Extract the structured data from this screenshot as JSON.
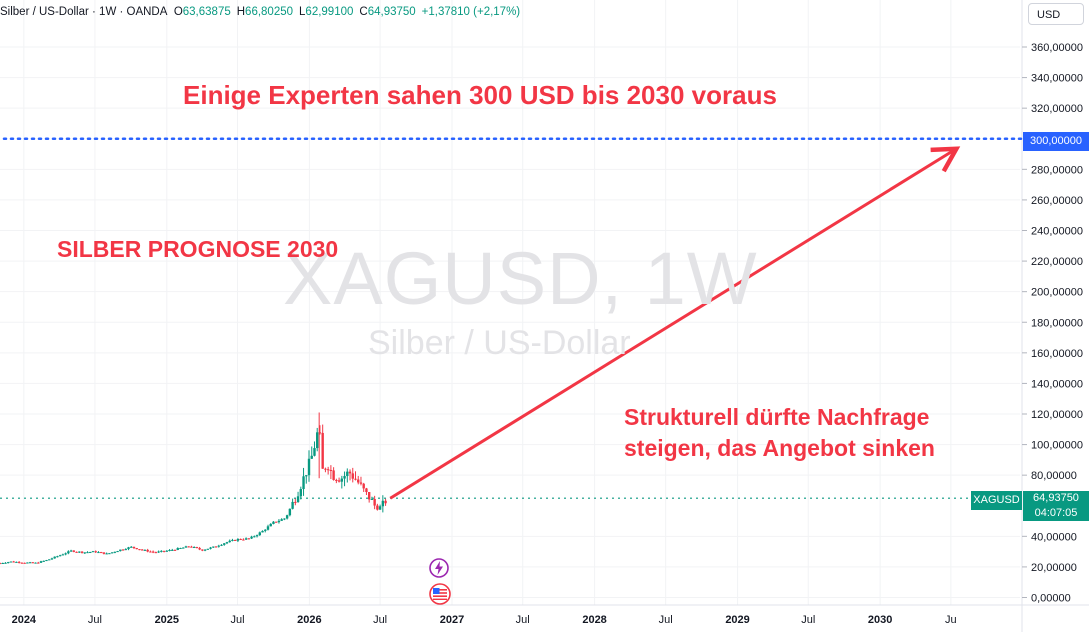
{
  "header": {
    "symbol": "Silber / US-Dollar · 1W · OANDA",
    "open_label": "O",
    "open": "63,63875",
    "high_label": "H",
    "high": "66,80250",
    "low_label": "L",
    "low": "62,99100",
    "close_label": "C",
    "close": "64,93750",
    "change": "+1,37810 (+2,17%)"
  },
  "currency": "USD",
  "watermark": {
    "ticker": "XAGUSD, 1W",
    "name": "Silber / US-Dollar"
  },
  "annotations": {
    "experts": "Einige Experten sahen 300 USD bis 2030 voraus",
    "title": "SILBER PROGNOSE 2030",
    "structural_1": "Strukturell dürfte Nachfrage",
    "structural_2": "steigen, das Angebot sinken"
  },
  "badges": {
    "target_price": "300,00000",
    "symbol": "XAGUSD",
    "last_price": "64,93750",
    "countdown": "04:07:05"
  },
  "colors": {
    "up": "#089981",
    "down": "#f23645",
    "arrow": "#f23645",
    "target_line": "#2962ff",
    "axis_text": "#131722"
  },
  "icons": [
    "flash-event-icon",
    "us-flag-event-icon"
  ],
  "chart_data": {
    "type": "candlestick",
    "y_ticks": [
      "0,00000",
      "20,00000",
      "40,00000",
      "80,00000",
      "100,00000",
      "120,00000",
      "140,00000",
      "160,00000",
      "180,00000",
      "200,00000",
      "220,00000",
      "240,00000",
      "260,00000",
      "280,00000",
      "320,00000",
      "340,00000",
      "360,00000"
    ],
    "y_range": [
      0,
      365
    ],
    "x_ticks": [
      "2024",
      "Jul",
      "2025",
      "Jul",
      "2026",
      "Jul",
      "2027",
      "Jul",
      "2028",
      "Jul",
      "2029",
      "Jul",
      "2030",
      "Ju"
    ],
    "x_range": [
      "2023-11-01",
      "2030-12-25"
    ],
    "series_points": [
      [
        "2023-11-01",
        22.5
      ],
      [
        "2023-12-01",
        23.5
      ],
      [
        "2024-01-01",
        22.8
      ],
      [
        "2024-02-01",
        22.6
      ],
      [
        "2024-03-01",
        24.5
      ],
      [
        "2024-04-01",
        27.5
      ],
      [
        "2024-05-01",
        30.5
      ],
      [
        "2024-06-01",
        29.5
      ],
      [
        "2024-07-01",
        30.0
      ],
      [
        "2024-08-01",
        28.5
      ],
      [
        "2024-09-01",
        31.0
      ],
      [
        "2024-10-01",
        33.0
      ],
      [
        "2024-11-01",
        31.0
      ],
      [
        "2024-12-01",
        29.5
      ],
      [
        "2025-01-01",
        30.5
      ],
      [
        "2025-02-01",
        32.0
      ],
      [
        "2025-03-01",
        33.5
      ],
      [
        "2025-04-01",
        31.0
      ],
      [
        "2025-05-01",
        33.0
      ],
      [
        "2025-06-01",
        36.0
      ],
      [
        "2025-07-01",
        38.0
      ],
      [
        "2025-08-01",
        38.5
      ],
      [
        "2025-09-01",
        43.0
      ],
      [
        "2025-10-01",
        49.0
      ],
      [
        "2025-11-01",
        52.0
      ],
      [
        "2025-12-01",
        68.0
      ],
      [
        "2026-01-05",
        90.0
      ],
      [
        "2026-01-26",
        112.0
      ],
      [
        "2026-02-02",
        82.0
      ],
      [
        "2026-02-16",
        88.0
      ],
      [
        "2026-03-02",
        80.0
      ],
      [
        "2026-03-23",
        78.0
      ],
      [
        "2026-04-13",
        82.0
      ],
      [
        "2026-05-04",
        76.0
      ],
      [
        "2026-05-25",
        68.0
      ],
      [
        "2026-06-08",
        64.0
      ],
      [
        "2026-06-22",
        58.0
      ],
      [
        "2026-07-06",
        60.0
      ],
      [
        "2026-07-20",
        64.9375
      ]
    ],
    "arrow": {
      "from": [
        "2026-07-27",
        64.9
      ],
      "to": [
        "2030-07-15",
        300
      ]
    },
    "target_level": 300,
    "last_price": 64.9375
  }
}
